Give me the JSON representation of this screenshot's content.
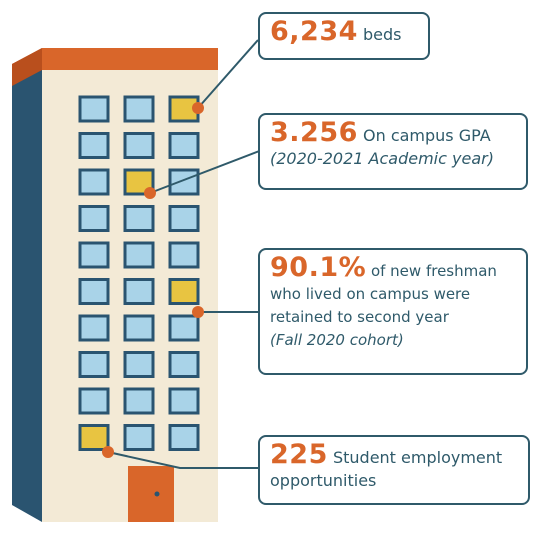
{
  "callouts": [
    {
      "value": "6,234",
      "text": "beds"
    },
    {
      "value": "3.256",
      "text": "On campus GPA",
      "note": "(2020-2021 Academic year)"
    },
    {
      "value": "90.1%",
      "text": "of new freshman who lived on campus were retained to second year",
      "note": "(Fall 2020 cohort)"
    },
    {
      "value": "225",
      "text": "Student employment opportunities"
    }
  ]
}
